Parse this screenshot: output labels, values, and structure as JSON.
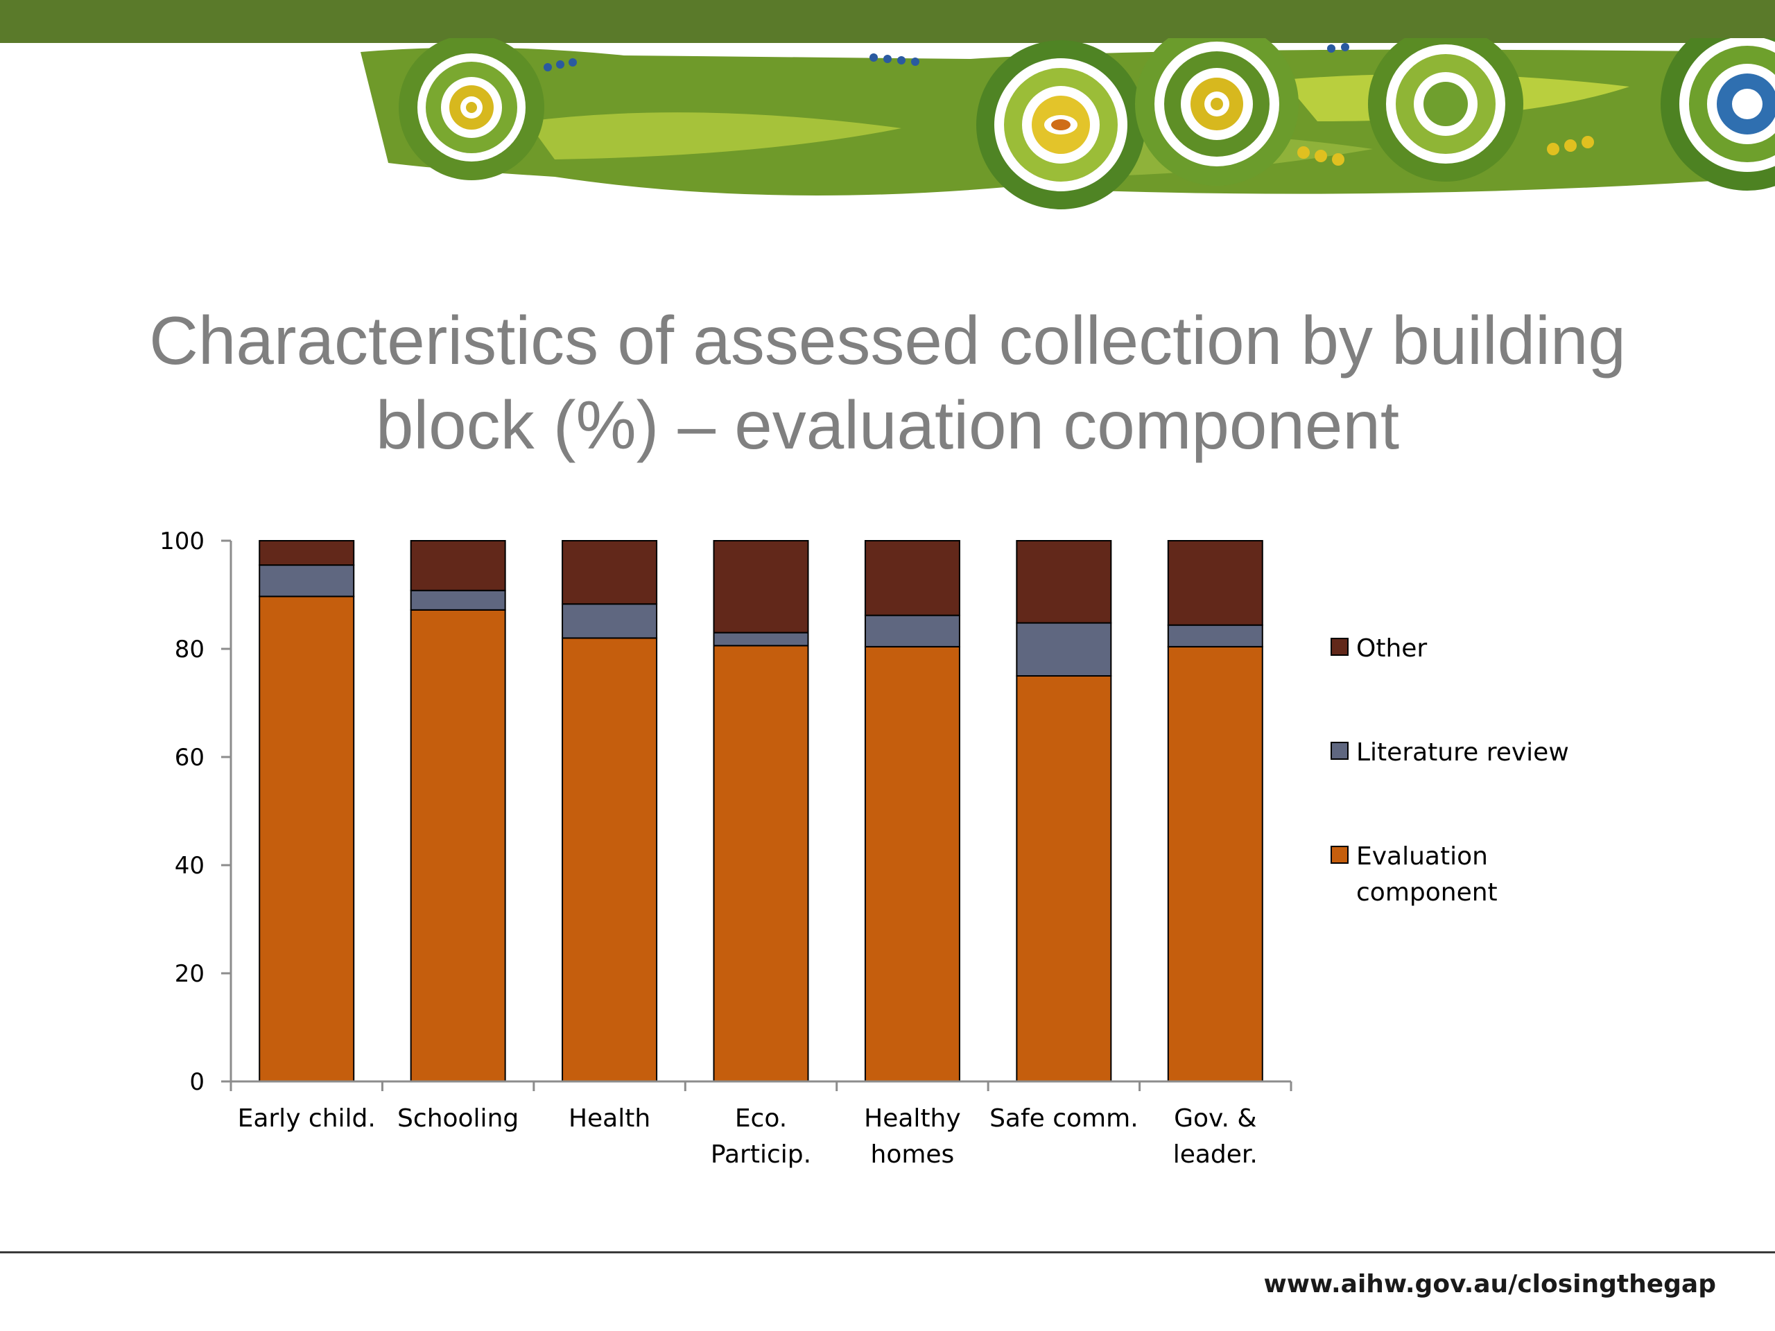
{
  "slide": {
    "title_line1": "Characteristics of assessed collection by building",
    "title_line2": "block (%) – evaluation component",
    "footer_url": "www.aihw.gov.au/closingthegap"
  },
  "colors": {
    "top_bar": "#5a7a2a",
    "evaluation_component": "#c55e0d",
    "literature_review": "#5f6780",
    "other": "#62281a",
    "title_text": "#808080"
  },
  "chart_data": {
    "type": "bar",
    "stacked": true,
    "categories": [
      "Early child.",
      "Schooling",
      "Health",
      "Eco. Particip.",
      "Healthy homes",
      "Safe comm.",
      "Gov. & leader."
    ],
    "category_label_lines": [
      [
        "Early child."
      ],
      [
        "Schooling"
      ],
      [
        "Health"
      ],
      [
        "Eco.",
        "Particip."
      ],
      [
        "Healthy",
        "homes"
      ],
      [
        "Safe comm."
      ],
      [
        "Gov. &",
        "leader."
      ]
    ],
    "series": [
      {
        "name": "Evaluation component",
        "legend_lines": [
          "Evaluation",
          "component"
        ],
        "values": [
          89.7,
          87.2,
          82.0,
          80.6,
          80.4,
          75.0,
          80.4
        ],
        "color": "#c55e0d"
      },
      {
        "name": "Literature review",
        "legend_lines": [
          "Literature review"
        ],
        "values": [
          5.8,
          3.6,
          6.3,
          2.4,
          5.8,
          9.8,
          4.0
        ],
        "color": "#5f6780"
      },
      {
        "name": "Other",
        "legend_lines": [
          "Other"
        ],
        "values": [
          4.5,
          9.2,
          11.7,
          17.0,
          13.8,
          15.2,
          15.6
        ],
        "color": "#62281a"
      }
    ],
    "yticks": [
      0,
      20,
      40,
      60,
      80,
      100
    ],
    "ylim": [
      0,
      100
    ],
    "title": "",
    "xlabel": "",
    "ylabel": "",
    "legend": "right",
    "grid": false
  }
}
